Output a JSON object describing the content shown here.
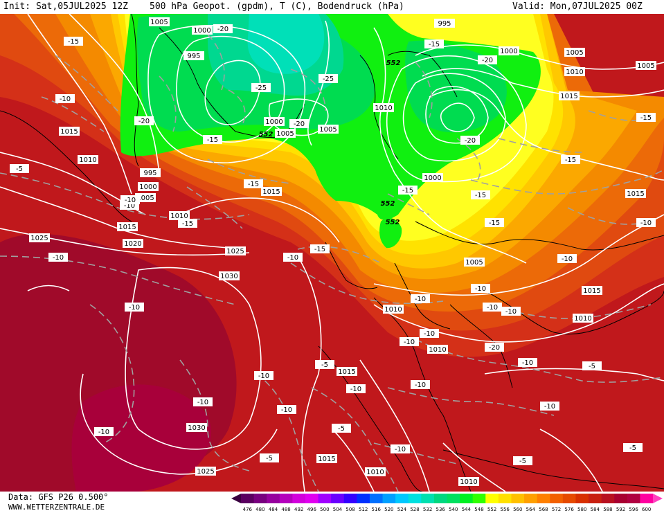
{
  "header": {
    "init": "Init: Sat,05JUL2025 12Z",
    "title": "500 hPa Geopot. (gpdm), T (C), Bodendruck (hPa)",
    "valid": "Valid: Mon,07JUL2025 00Z"
  },
  "footer": {
    "source": "Data: GFS P26 0.500°",
    "website": "WWW.WETTERZENTRALE.DE"
  },
  "legend": {
    "values": [
      "476",
      "480",
      "484",
      "488",
      "492",
      "496",
      "500",
      "504",
      "508",
      "512",
      "516",
      "520",
      "524",
      "528",
      "532",
      "536",
      "540",
      "544",
      "548",
      "552",
      "556",
      "560",
      "564",
      "568",
      "572",
      "576",
      "580",
      "584",
      "588",
      "592",
      "596",
      "600"
    ],
    "colors": [
      "#5a0060",
      "#78007f",
      "#96009e",
      "#b400bd",
      "#d200dc",
      "#e000f0",
      "#a000ff",
      "#6a00ff",
      "#3400ff",
      "#0030ff",
      "#0070ff",
      "#00a0ff",
      "#00c8ff",
      "#00e0e0",
      "#00e0b0",
      "#00d880",
      "#00e060",
      "#00f020",
      "#30ff00",
      "#ffff00",
      "#ffe000",
      "#ffc000",
      "#ffa000",
      "#ff8000",
      "#f26000",
      "#e64a00",
      "#d83000",
      "#c82010",
      "#b81020",
      "#a80030",
      "#b00040",
      "#ff00a0"
    ]
  },
  "isobars": [
    "1005",
    "1000",
    "995",
    "1005",
    "1000",
    "1015",
    "1010",
    "995",
    "1000",
    "1005",
    "1010",
    "1015",
    "1025",
    "1020",
    "1025",
    "1030",
    "1030",
    "1025",
    "1015",
    "1015",
    "1010",
    "1010",
    "1005",
    "1010",
    "1015",
    "1010",
    "1015",
    "1005",
    "995",
    "1000",
    "1005",
    "1010",
    "1015",
    "1000",
    "1005",
    "1010",
    "1015",
    "1010"
  ],
  "temperatures": [
    "-20",
    "-15",
    "-10",
    "-15",
    "-25",
    "-25",
    "-20",
    "-20",
    "-15",
    "-15",
    "-15",
    "-10",
    "-5",
    "-10",
    "-10",
    "-15",
    "-10",
    "-10",
    "-10",
    "-15",
    "-10",
    "-5",
    "-10",
    "-10",
    "-5",
    "-10",
    "-10",
    "-10",
    "-5",
    "-10",
    "-5",
    "-10",
    "-10",
    "-10",
    "-15",
    "-20",
    "-20",
    "-15",
    "-15",
    "-10",
    "-10",
    "-10",
    "-10",
    "-5",
    "-20",
    "-15",
    "-5",
    "-10",
    "-10"
  ],
  "geopotential_labels": [
    "552",
    "552",
    "552",
    "552"
  ],
  "icons": [
    "legend-left-arrow-icon",
    "legend-right-arrow-icon"
  ]
}
